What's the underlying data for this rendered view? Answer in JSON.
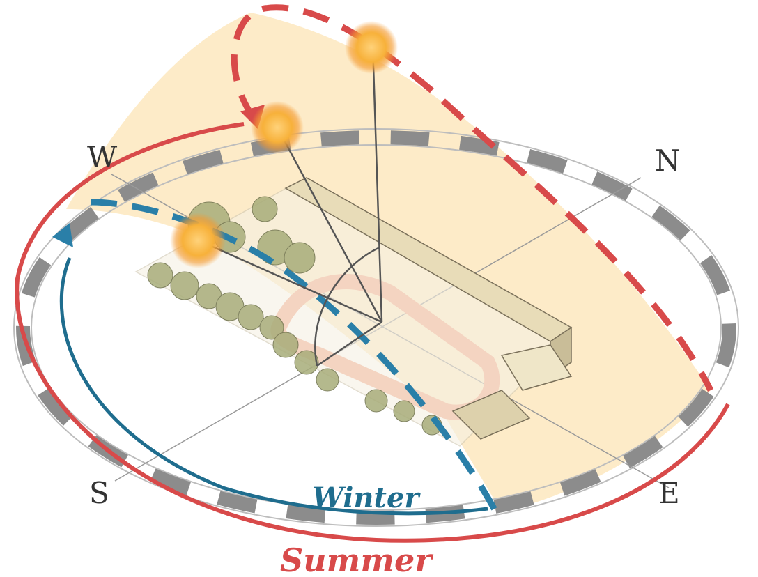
{
  "compass": {
    "west": "W",
    "north": "N",
    "south": "S",
    "east": "E"
  },
  "seasons": {
    "winter": {
      "label": "Winter",
      "color": "#2a7fa8"
    },
    "summer": {
      "label": "Summer",
      "color": "#d84a4a"
    }
  },
  "colors": {
    "dome_fill": "#fdebc8",
    "sun": "#f7b13a",
    "ring_dark": "#8c8c8c",
    "track": "#f2a98e",
    "tree": "#a8ad7a",
    "building": "#e8dcb8"
  },
  "icons": {
    "sun": "sun-icon",
    "arrow": "arrow-icon"
  }
}
